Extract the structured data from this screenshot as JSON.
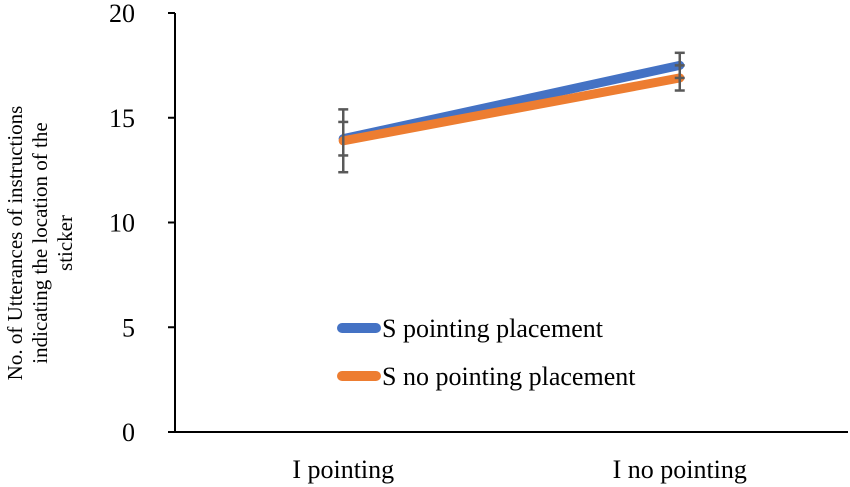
{
  "chart_data": {
    "type": "line",
    "title": "",
    "xlabel": "",
    "ylabel": "No. of Utterances of instructions indicating the location of the sticker",
    "ylabel_lines": [
      "No. of Utterances of instructions",
      "indicating the location of the",
      "sticker"
    ],
    "categories": [
      "I pointing",
      "I no pointing"
    ],
    "ylim": [
      0,
      20
    ],
    "yticks": [
      0,
      5,
      10,
      15,
      20
    ],
    "grid": false,
    "legend_position": "center-right",
    "series": [
      {
        "name": "S pointing placement",
        "values": [
          14.0,
          17.5
        ],
        "error": [
          0.8,
          0.6
        ],
        "color": "#4472C4"
      },
      {
        "name": "S no pointing placement",
        "values": [
          13.9,
          16.9
        ],
        "error": [
          1.5,
          0.6
        ],
        "color": "#ED7D31"
      }
    ],
    "error_bar_color": "#595959"
  }
}
